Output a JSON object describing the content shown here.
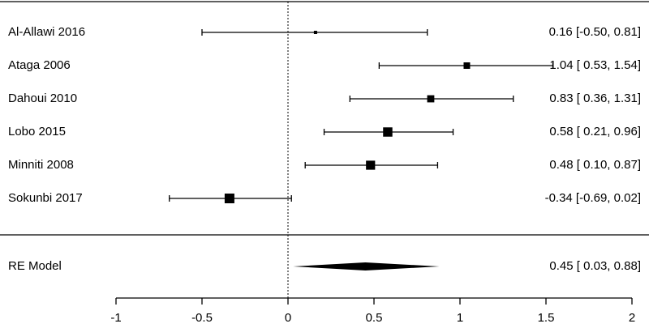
{
  "chart_data": {
    "type": "forest",
    "studies": [
      {
        "label": "Al-Allawi 2016",
        "estimate": 0.16,
        "lower": -0.5,
        "upper": 0.81,
        "ci_text": "0.16 [-0.50, 0.81]"
      },
      {
        "label": "Ataga 2006",
        "estimate": 1.04,
        "lower": 0.53,
        "upper": 1.54,
        "ci_text": "1.04 [ 0.53, 1.54]"
      },
      {
        "label": "Dahoui 2010",
        "estimate": 0.83,
        "lower": 0.36,
        "upper": 1.31,
        "ci_text": "0.83 [ 0.36, 1.31]"
      },
      {
        "label": "Lobo 2015",
        "estimate": 0.58,
        "lower": 0.21,
        "upper": 0.96,
        "ci_text": "0.58 [ 0.21, 0.96]"
      },
      {
        "label": "Minniti 2008",
        "estimate": 0.48,
        "lower": 0.1,
        "upper": 0.87,
        "ci_text": "0.48 [ 0.10, 0.87]"
      },
      {
        "label": "Sokunbi 2017",
        "estimate": -0.34,
        "lower": -0.69,
        "upper": 0.02,
        "ci_text": "-0.34 [-0.69, 0.02]"
      }
    ],
    "summary": {
      "label": "RE Model",
      "estimate": 0.45,
      "lower": 0.03,
      "upper": 0.88,
      "ci_text": "0.45 [ 0.03, 0.88]"
    },
    "xticks": [
      -1,
      -0.5,
      0,
      0.5,
      1,
      1.5,
      2
    ],
    "xtick_labels": [
      "-1",
      "-0.5",
      "0",
      "0.5",
      "1",
      "1.5",
      "2"
    ],
    "xlim": [
      -1,
      2
    ],
    "reference_line": 0
  }
}
